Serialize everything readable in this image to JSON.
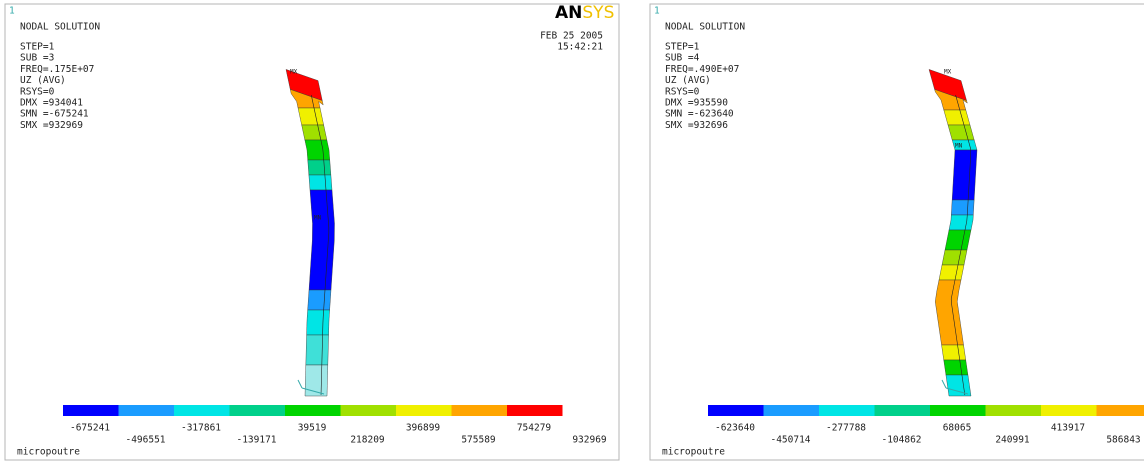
{
  "panels": [
    {
      "window_number": "1",
      "title": "NODAL SOLUTION",
      "info": [
        "STEP=1",
        "SUB =3",
        "FREQ=.175E+07",
        "UZ       (AVG)",
        "RSYS=0",
        "DMX =934041",
        "SMN =-675241",
        "SMX =932969"
      ],
      "logo": {
        "bold": "AN",
        "accent": "SYS"
      },
      "date": "FEB 25 2005",
      "time": "15:42:21",
      "max_label": "MX",
      "min_label": "MN",
      "legend_labels": [
        "-675241",
        "-496551",
        "-317861",
        "-139171",
        "39519",
        "218209",
        "396899",
        "575589",
        "754279",
        "932969"
      ],
      "footer": "micropoutre"
    },
    {
      "window_number": "1",
      "title": "NODAL SOLUTION",
      "info": [
        "STEP=1",
        "SUB =4",
        "FREQ=.490E+07",
        "UZ       (AVG)",
        "RSYS=0",
        "DMX =935590",
        "SMN =-623640",
        "SMX =932696"
      ],
      "max_label": "MX",
      "min_label": "MN",
      "legend_labels": [
        "-623640",
        "-450714",
        "-277788",
        "-104862",
        "68065",
        "240991",
        "413917",
        "586843"
      ],
      "footer": "micropoutre"
    }
  ]
}
